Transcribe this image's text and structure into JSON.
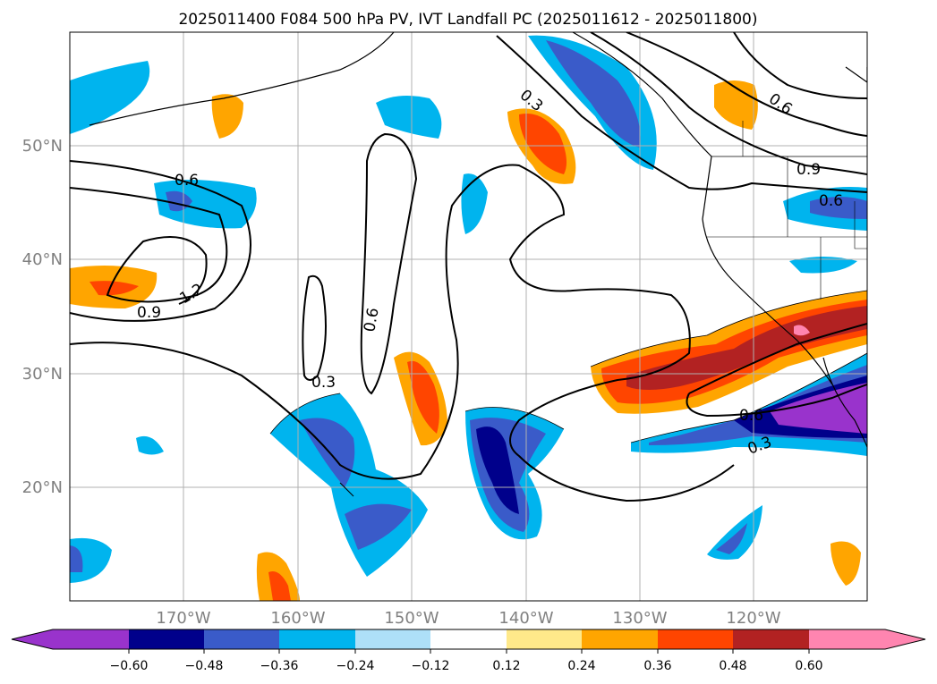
{
  "title": "2025011400 F084 500 hPa PV, IVT Landfall PC (2025011612 - 2025011800)",
  "map": {
    "projection": "PlateCarree",
    "lon_range": [
      -180,
      -110
    ],
    "lat_range": [
      10,
      60
    ],
    "lon_ticks": [
      "170°W",
      "160°W",
      "150°W",
      "140°W",
      "130°W",
      "120°W"
    ],
    "lat_ticks": [
      "50°N",
      "40°N",
      "30°N",
      "20°N"
    ],
    "gridlines": true,
    "coastlines": true,
    "borders": true
  },
  "colorbar": {
    "extend": "both",
    "ticks": [
      "−0.60",
      "−0.48",
      "−0.36",
      "−0.24",
      "−0.12",
      "0.12",
      "0.24",
      "0.36",
      "0.48",
      "0.60"
    ],
    "colors": [
      "#9933cc",
      "#00008b",
      "#3a5bc9",
      "#00b4ee",
      "#aee0f8",
      "#ffffff",
      "#ffe98a",
      "#ffa500",
      "#ff4500",
      "#b22222",
      "#ff85b0"
    ]
  },
  "pv_contours": {
    "labels": [
      "0.3",
      "0.6",
      "0.9",
      "1.2",
      "0.6",
      "0.9",
      "0.6",
      "0.3",
      "0.6",
      "0.3",
      "0.6"
    ]
  }
}
